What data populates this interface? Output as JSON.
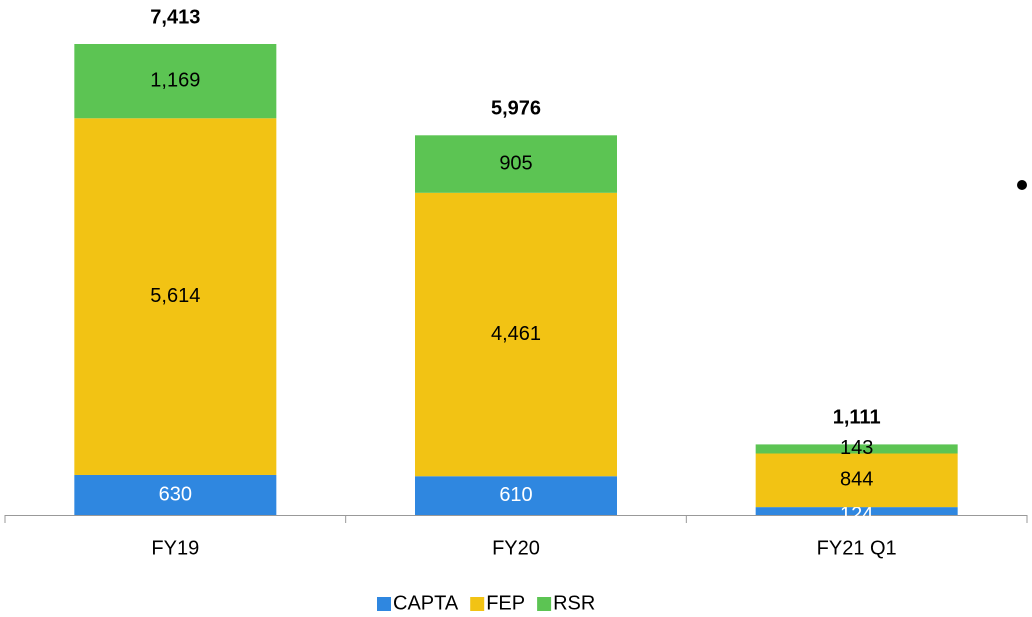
{
  "chart_data": {
    "type": "stacked-bar",
    "categories": [
      "FY19",
      "FY20",
      "FY21 Q1"
    ],
    "series": [
      {
        "name": "CAPTA",
        "color": "#2f87e0",
        "values": [
          630,
          610,
          124
        ],
        "value_labels": [
          "630",
          "610",
          "124"
        ]
      },
      {
        "name": "FEP",
        "color": "#f2c314",
        "values": [
          5614,
          4461,
          844
        ],
        "value_labels": [
          "5,614",
          "4,461",
          "844"
        ]
      },
      {
        "name": "RSR",
        "color": "#5cc453",
        "values": [
          1169,
          905,
          143
        ],
        "value_labels": [
          "1,169",
          "905",
          "143"
        ]
      }
    ],
    "totals": [
      7413,
      5976,
      1111
    ],
    "total_labels": [
      "7,413",
      "5,976",
      "1,111"
    ]
  }
}
